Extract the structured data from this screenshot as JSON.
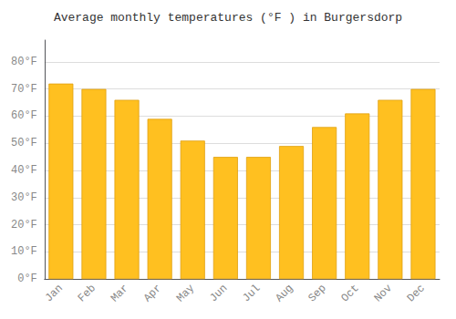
{
  "chart_data": {
    "type": "bar",
    "title": "Average monthly temperatures (°F ) in Burgersdorp",
    "categories": [
      "Jan",
      "Feb",
      "Mar",
      "Apr",
      "May",
      "Jun",
      "Jul",
      "Aug",
      "Sep",
      "Oct",
      "Nov",
      "Dec"
    ],
    "values": [
      72,
      70,
      66,
      59,
      51,
      45,
      45,
      49,
      56,
      61,
      66,
      70
    ],
    "color": "#FFC020",
    "ylim": [
      0,
      88
    ],
    "yticks": [
      {
        "value": 0,
        "label": "0°F"
      },
      {
        "value": 10,
        "label": "10°F"
      },
      {
        "value": 20,
        "label": "20°F"
      },
      {
        "value": 30,
        "label": "30°F"
      },
      {
        "value": 40,
        "label": "40°F"
      },
      {
        "value": 50,
        "label": "50°F"
      },
      {
        "value": 60,
        "label": "60°F"
      },
      {
        "value": 70,
        "label": "70°F"
      },
      {
        "value": 80,
        "label": "80°F"
      }
    ],
    "grid": true
  }
}
